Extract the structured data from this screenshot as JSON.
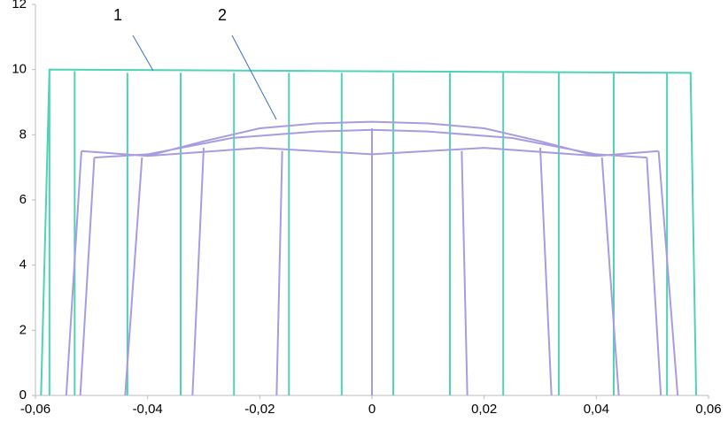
{
  "chart_data": {
    "type": "line",
    "annotations": [
      "1",
      "2"
    ],
    "xlim": [
      -0.06,
      0.06
    ],
    "ylim": [
      0,
      12
    ],
    "xticks": [
      {
        "value": -0.06,
        "label": "-0,06"
      },
      {
        "value": -0.04,
        "label": "-0,04"
      },
      {
        "value": -0.02,
        "label": "-0,02"
      },
      0,
      {
        "value": 0.02,
        "label": "0,02"
      },
      {
        "value": 0.04,
        "label": "0,04"
      },
      {
        "value": 0.06,
        "label": "0,06"
      }
    ],
    "yticks": [
      0,
      2,
      4,
      6,
      8,
      10,
      12
    ],
    "series": [
      {
        "color": "#4fd3b5",
        "x": [
          -0.059,
          -0.0575,
          0.0568,
          0.0578,
          null,
          -0.0575,
          -0.0575,
          null,
          -0.053,
          -0.053,
          null,
          -0.0436,
          -0.0436,
          null,
          -0.0341,
          -0.0341,
          null,
          -0.0246,
          -0.0246,
          null,
          -0.0148,
          -0.0148,
          null,
          -0.0054,
          -0.0054,
          null,
          0.0038,
          0.0038,
          null,
          0.0139,
          0.0139,
          null,
          0.0234,
          0.0234,
          null,
          0.0333,
          0.0333,
          null,
          0.0431,
          0.0431,
          null,
          0.0526,
          0.0526
        ],
        "values": [
          0,
          10,
          9.9,
          0,
          null,
          0,
          10,
          null,
          0,
          9.95,
          null,
          0,
          9.9,
          null,
          0,
          9.9,
          null,
          0,
          9.9,
          null,
          0,
          9.9,
          null,
          0,
          9.9,
          null,
          0,
          9.9,
          null,
          0,
          9.9,
          null,
          0,
          9.9,
          null,
          0,
          9.9,
          null,
          0,
          9.9,
          null,
          0,
          9.9
        ]
      },
      {
        "color": "#a99be0",
        "x": [
          -0.0518,
          -0.04,
          -0.03,
          -0.02,
          -0.01,
          0,
          0.01,
          0.02,
          0.03,
          0.04,
          0.0511,
          null,
          -0.0495,
          -0.04,
          -0.025,
          -0.01,
          0,
          0.01,
          0.025,
          0.04,
          0.049,
          null,
          -0.04,
          -0.02,
          0,
          0.02,
          0.04,
          null,
          -0.0518,
          -0.0545,
          null,
          -0.0495,
          -0.052,
          null,
          -0.041,
          -0.044,
          null,
          -0.03,
          -0.032,
          null,
          -0.016,
          -0.017,
          null,
          0,
          0,
          null,
          0.016,
          0.017,
          null,
          0.03,
          0.032,
          null,
          0.041,
          0.044,
          null,
          0.049,
          0.0515,
          null,
          0.0511,
          0.0545
        ],
        "values": [
          7.5,
          7.35,
          7.8,
          8.2,
          8.35,
          8.4,
          8.35,
          8.2,
          7.8,
          7.35,
          7.5,
          null,
          7.3,
          7.4,
          7.9,
          8.1,
          8.15,
          8.1,
          7.9,
          7.4,
          7.3,
          null,
          7.35,
          7.6,
          7.4,
          7.6,
          7.35,
          null,
          7.5,
          0,
          null,
          7.3,
          0,
          null,
          7.3,
          0,
          null,
          7.6,
          0,
          null,
          7.5,
          0,
          null,
          8.2,
          0,
          null,
          7.5,
          0,
          null,
          7.6,
          0,
          null,
          7.3,
          0,
          null,
          7.3,
          0,
          null,
          7.5,
          0
        ]
      }
    ]
  }
}
